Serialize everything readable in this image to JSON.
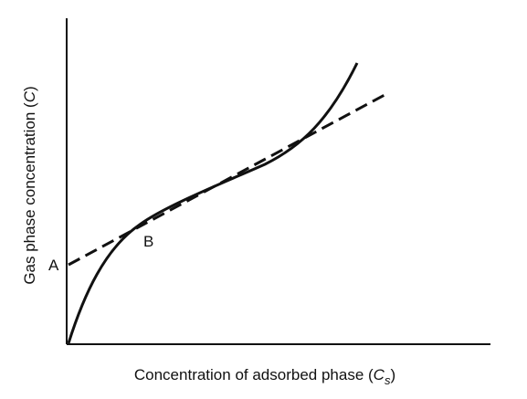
{
  "diagram": {
    "x_axis_title": {
      "prefix": "Concentration of adsorbed phase (",
      "symbol": "C",
      "subscript": "s",
      "suffix": ")"
    },
    "y_axis_title": {
      "prefix": "Gas phase concentration (",
      "symbol": "C",
      "suffix": ")"
    },
    "point_labels": {
      "a": "A",
      "b": "B"
    },
    "styles": {
      "line_color": "#111111",
      "background": "#ffffff",
      "tangent_style": "dashed",
      "isotherm_style": "solid"
    }
  }
}
